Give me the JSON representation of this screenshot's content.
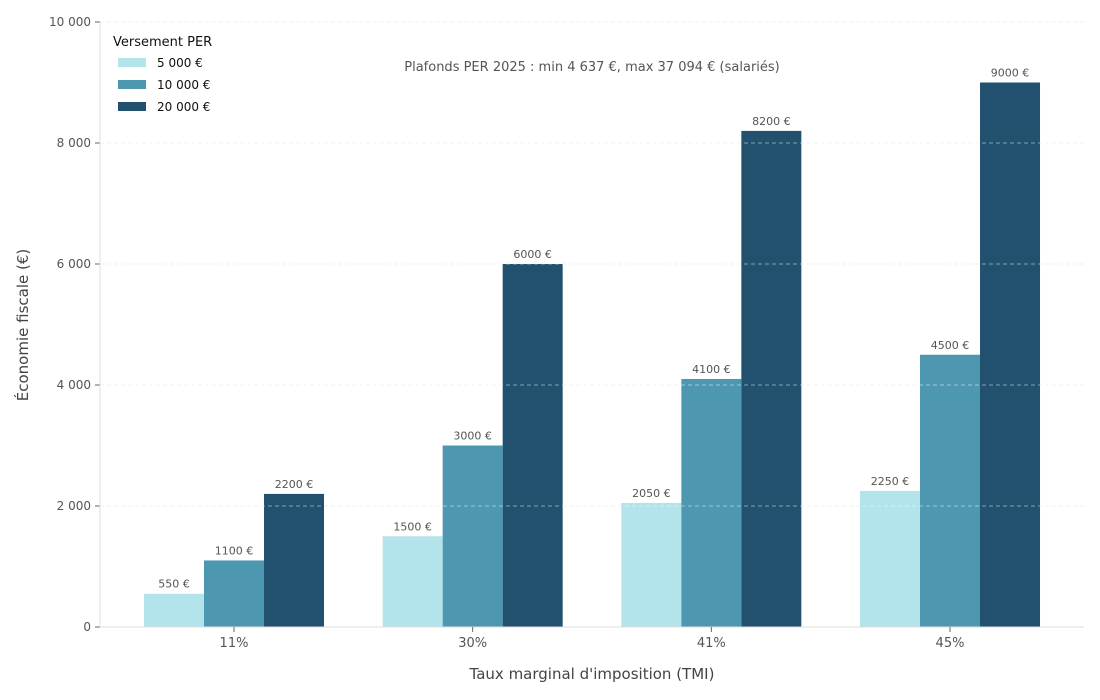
{
  "chart_data": {
    "type": "bar",
    "categories": [
      "11%",
      "30%",
      "41%",
      "45%"
    ],
    "series": [
      {
        "name": "5 000 €",
        "color": "#b3e4eb",
        "values": [
          550,
          1500,
          2050,
          2250
        ],
        "labels": [
          "550 €",
          "1500 €",
          "2050 €",
          "2250 €"
        ]
      },
      {
        "name": "10 000 €",
        "color": "#4e97b0",
        "values": [
          1100,
          3000,
          4100,
          4500
        ],
        "labels": [
          "1100 €",
          "3000 €",
          "4100 €",
          "4500 €"
        ]
      },
      {
        "name": "20 000 €",
        "color": "#22506f",
        "values": [
          2200,
          6000,
          8200,
          9000
        ],
        "labels": [
          "2200 €",
          "6000 €",
          "8200 €",
          "9000 €"
        ]
      }
    ],
    "xlabel": "Taux marginal d'imposition (TMI)",
    "ylabel": "Économie fiscale (€)",
    "ylim": [
      0,
      10000
    ],
    "yticks": [
      0,
      2000,
      4000,
      6000,
      8000,
      10000
    ],
    "ytick_labels": [
      "0",
      "2 000",
      "4 000",
      "6 000",
      "8 000",
      "10 000"
    ],
    "legend_title": "Versement PER",
    "legend_position": "top-left",
    "annotation": "Plafonds PER 2025 : min 4 637 €, max 37 094 € (salariés)",
    "grid": "y dashed"
  }
}
